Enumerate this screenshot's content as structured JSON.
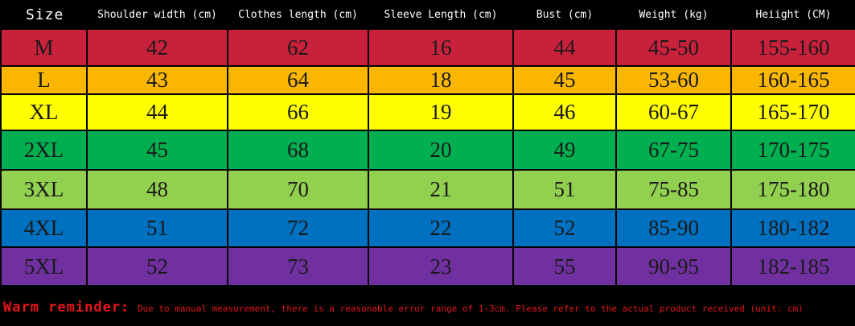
{
  "table": {
    "header": [
      "Size",
      "Shoulder width (cm)",
      "Clothes length (cm)",
      "Sleeve Length (cm)",
      "Bust (cm)",
      "Weight (kg)",
      "Heiight (CM)"
    ],
    "rows": [
      {
        "color": "#c9203c",
        "cells": [
          "M",
          "42",
          "62",
          "16",
          "44",
          "45-50",
          "155-160"
        ]
      },
      {
        "color": "#fbb700",
        "cells": [
          "L",
          "43",
          "64",
          "18",
          "45",
          "53-60",
          "160-165"
        ]
      },
      {
        "color": "#ffff00",
        "cells": [
          "XL",
          "44",
          "66",
          "19",
          "46",
          "60-67",
          "165-170"
        ]
      },
      {
        "color": "#00b050",
        "cells": [
          "2XL",
          "45",
          "68",
          "20",
          "49",
          "67-75",
          "170-175"
        ]
      },
      {
        "color": "#92d050",
        "cells": [
          "3XL",
          "48",
          "70",
          "21",
          "51",
          "75-85",
          "175-180"
        ]
      },
      {
        "color": "#0070c0",
        "cells": [
          "4XL",
          "51",
          "72",
          "22",
          "52",
          "85-90",
          "180-182"
        ]
      },
      {
        "color": "#7030a0",
        "cells": [
          "5XL",
          "52",
          "73",
          "23",
          "55",
          "90-95",
          "182-185"
        ]
      }
    ]
  },
  "footer": {
    "lead": "Warm reminder:",
    "note": "Due to manual measurement, there is a reasonable error range of 1-3cm. Please refer to the actual product received (unit: cm)"
  }
}
